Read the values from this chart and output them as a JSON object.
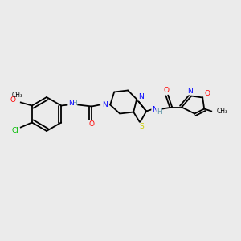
{
  "background_color": "#ebebeb",
  "bond_color": "#000000",
  "atom_colors": {
    "N": "#0000ff",
    "O": "#ff0000",
    "S": "#cccc00",
    "Cl": "#00bb00",
    "H": "#6699aa",
    "C": "#000000"
  },
  "figsize": [
    3.0,
    3.0
  ],
  "dpi": 100
}
